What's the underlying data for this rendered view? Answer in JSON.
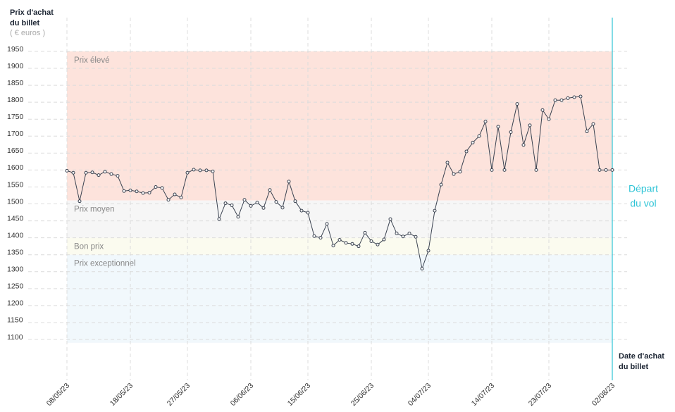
{
  "chart_data": {
    "type": "line",
    "y_axis_title": [
      "Prix d'achat",
      "du billet"
    ],
    "y_axis_unit": "( € euros )",
    "x_axis_title": [
      "Date d'achat",
      "du billet"
    ],
    "ylim": [
      1100,
      1950
    ],
    "yticks": [
      1100,
      1150,
      1200,
      1250,
      1300,
      1350,
      1400,
      1450,
      1500,
      1550,
      1600,
      1650,
      1700,
      1750,
      1800,
      1850,
      1900,
      1950
    ],
    "grid": true,
    "color": "#3a4250",
    "bands": [
      {
        "name": "Prix élevé",
        "from": 1510,
        "to": 1950,
        "color": "#fde3dc"
      },
      {
        "name": "Prix moyen",
        "from": 1400,
        "to": 1510,
        "color": "#f6f6f6"
      },
      {
        "name": "Bon prix",
        "from": 1350,
        "to": 1400,
        "color": "#fbfbef"
      },
      {
        "name": "Prix exceptionnel",
        "from": 1090,
        "to": 1350,
        "color": "#f1f8fc"
      }
    ],
    "departure": {
      "label": [
        "Départ",
        "du vol"
      ],
      "x": "02/08/23",
      "color": "#2ec4d6"
    },
    "categories": [
      "08/05/23",
      null,
      null,
      null,
      null,
      null,
      null,
      null,
      null,
      null,
      "18/05/23",
      null,
      null,
      null,
      null,
      null,
      null,
      null,
      null,
      "27/05/23",
      null,
      null,
      null,
      null,
      null,
      null,
      null,
      null,
      null,
      "06/06/23",
      null,
      null,
      null,
      null,
      null,
      null,
      null,
      null,
      "15/06/23",
      null,
      null,
      null,
      null,
      null,
      null,
      null,
      null,
      null,
      "25/06/23",
      null,
      null,
      null,
      null,
      null,
      null,
      null,
      null,
      "04/07/23",
      null,
      null,
      null,
      null,
      null,
      null,
      null,
      null,
      null,
      "14/07/23",
      null,
      null,
      null,
      null,
      null,
      null,
      null,
      null,
      "23/07/23",
      null,
      null,
      null,
      null,
      null,
      null,
      null,
      null,
      null,
      "02/08/23"
    ],
    "values": [
      1598,
      1592,
      1508,
      1592,
      1593,
      1585,
      1595,
      1588,
      1583,
      1538,
      1540,
      1537,
      1532,
      1533,
      1550,
      1547,
      1512,
      1528,
      1519,
      1592,
      1601,
      1599,
      1599,
      1596,
      1455,
      1502,
      1496,
      1462,
      1512,
      1494,
      1504,
      1488,
      1541,
      1506,
      1489,
      1566,
      1508,
      1480,
      1474,
      1405,
      1400,
      1441,
      1377,
      1394,
      1385,
      1382,
      1375,
      1415,
      1390,
      1380,
      1395,
      1455,
      1413,
      1404,
      1413,
      1403,
      1309,
      1362,
      1480,
      1557,
      1622,
      1588,
      1595,
      1655,
      1681,
      1700,
      1743,
      1600,
      1728,
      1600,
      1712,
      1795,
      1674,
      1732,
      1600,
      1777,
      1750,
      1806,
      1806,
      1812,
      1815,
      1817,
      1714,
      1736,
      1600,
      1600,
      1600
    ]
  }
}
